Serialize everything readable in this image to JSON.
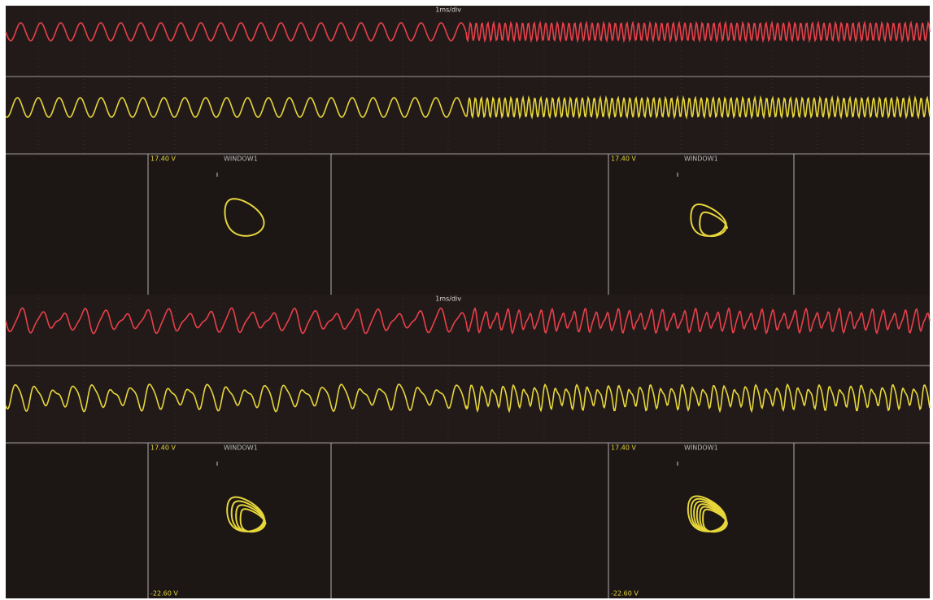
{
  "panels": [
    {
      "scale_label": "1ms/div",
      "top_label": "17.40 V",
      "window_label": "WINDOW1"
    },
    {
      "top_label": "17.40 V",
      "window_label": "WINDOW1"
    },
    {
      "scale_label": "1ms/div",
      "top_label": "17.40 V",
      "window_label": "WINDOW1",
      "bottom_label": "-22.60 V"
    },
    {
      "top_label": "17.40 V",
      "window_label": "WINDOW1",
      "bottom_label": "-22.60 V"
    }
  ]
}
